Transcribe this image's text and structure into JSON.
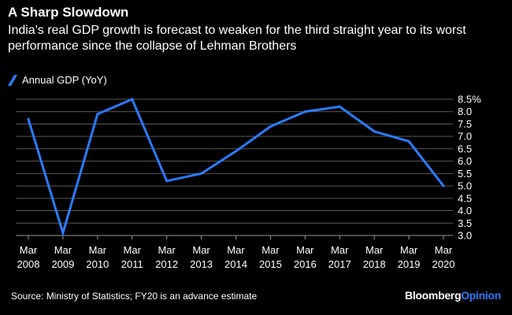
{
  "chart_data": {
    "type": "line",
    "title": "A Sharp Slowdown",
    "subtitle": "India's real GDP growth is forecast to weaken for the third straight year to its worst performance since the collapse of Lehman Brothers",
    "categories": [
      [
        "Mar",
        "2008"
      ],
      [
        "Mar",
        "2009"
      ],
      [
        "Mar",
        "2010"
      ],
      [
        "Mar",
        "2011"
      ],
      [
        "Mar",
        "2012"
      ],
      [
        "Mar",
        "2013"
      ],
      [
        "Mar",
        "2014"
      ],
      [
        "Mar",
        "2015"
      ],
      [
        "Mar",
        "2016"
      ],
      [
        "Mar",
        "2017"
      ],
      [
        "Mar",
        "2018"
      ],
      [
        "Mar",
        "2019"
      ],
      [
        "Mar",
        "2020"
      ]
    ],
    "series": [
      {
        "name": "Annual GDP (YoY)",
        "color": "#2a7bff",
        "values": [
          7.7,
          3.1,
          7.9,
          8.5,
          5.2,
          5.5,
          6.4,
          7.4,
          8.0,
          8.2,
          7.2,
          6.8,
          5.0
        ]
      }
    ],
    "ylim": [
      3.0,
      8.5
    ],
    "yticks": [
      "3.0",
      "3.5",
      "4.0",
      "4.5",
      "5.0",
      "5.5",
      "6.0",
      "6.5",
      "7.0",
      "7.5",
      "8.0",
      "8.5%"
    ],
    "ytick_values": [
      3.0,
      3.5,
      4.0,
      4.5,
      5.0,
      5.5,
      6.0,
      6.5,
      7.0,
      7.5,
      8.0,
      8.5
    ],
    "grid": true,
    "legend": "top-left",
    "axis_side": "right"
  },
  "footer": {
    "source": "Source: Ministry of Statistics; FY20 is an advance estimate",
    "brand_part1": "Bloomberg",
    "brand_part2": "Opinion"
  },
  "colors": {
    "background": "#000000",
    "line": "#2a7bff",
    "grid": "#5a5a5a",
    "text": "#ffffff"
  }
}
